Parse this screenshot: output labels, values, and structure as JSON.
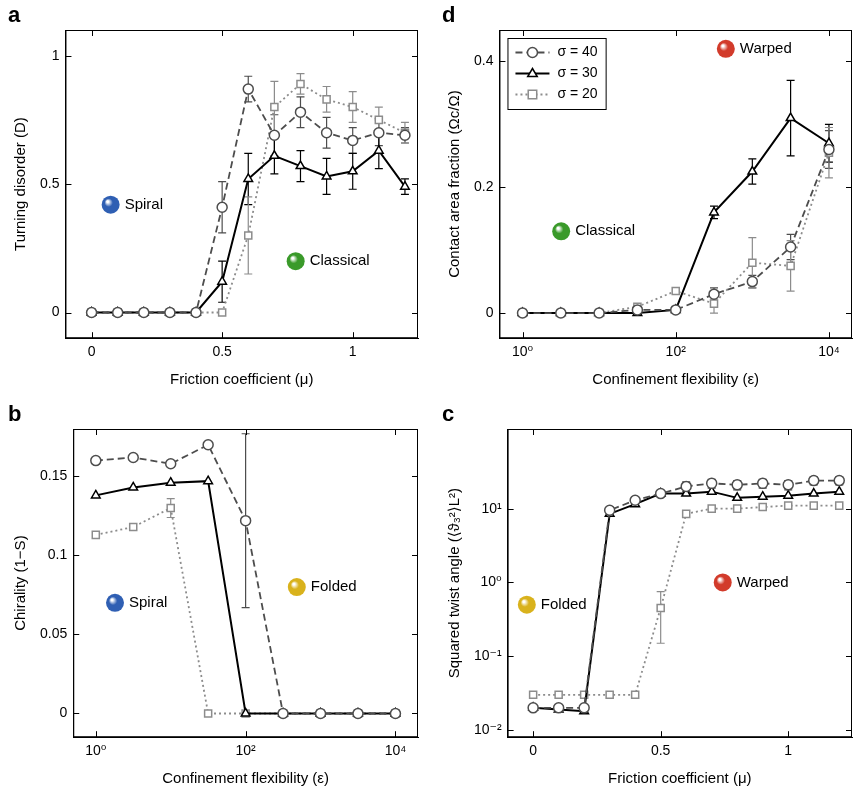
{
  "chart_data": [
    {
      "panel": "a",
      "type": "line",
      "x_label": "Friction coefficient (μ)",
      "y_label": "Turning disorder (D)",
      "x": [
        0,
        0.1,
        0.2,
        0.3,
        0.4,
        0.5,
        0.6,
        0.7,
        0.8,
        0.9,
        1.0,
        1.1,
        1.2
      ],
      "xlim": [
        -0.1,
        1.25
      ],
      "xticks": [
        0,
        0.5,
        1
      ],
      "ylim": [
        -0.1,
        1.1
      ],
      "yticks": [
        0,
        0.5,
        1
      ],
      "grid": false,
      "series": [
        {
          "color": "#4d4d4d",
          "marker": "circle",
          "line_style": "dashed",
          "values": [
            0,
            0,
            0,
            0,
            0,
            0.41,
            0.87,
            0.69,
            0.78,
            0.7,
            0.67,
            0.7,
            0.69
          ],
          "errors": [
            0,
            0,
            0,
            0,
            0,
            0.1,
            0.05,
            0.08,
            0.06,
            0.06,
            0.05,
            0.05,
            0.03
          ]
        },
        {
          "color": "#000000",
          "marker": "triangle",
          "line_style": "solid",
          "values": [
            0,
            0,
            0,
            0,
            0,
            0.12,
            0.52,
            0.61,
            0.57,
            0.53,
            0.55,
            0.63,
            0.49
          ],
          "errors": [
            0,
            0,
            0,
            0,
            0,
            0.08,
            0.1,
            0.07,
            0.06,
            0.07,
            0.07,
            0.07,
            0.03
          ]
        },
        {
          "color": "#8c8c8c",
          "marker": "square",
          "line_style": "dotted",
          "values": [
            0,
            0,
            0,
            0,
            0,
            0,
            0.3,
            0.8,
            0.89,
            0.83,
            0.8,
            0.75,
            0.7
          ],
          "errors": [
            0,
            0,
            0,
            0,
            0,
            0,
            0.15,
            0.1,
            0.04,
            0.05,
            0.06,
            0.05,
            0.04
          ]
        }
      ],
      "annotations": [
        {
          "text": "Spiral",
          "x": 0.2,
          "y": 0.42,
          "color": "#2f5fb3"
        },
        {
          "text": "Classical",
          "x": 0.95,
          "y": 0.2,
          "color": "#3a9a2a"
        }
      ]
    },
    {
      "panel": "d",
      "type": "line",
      "x_label": "Confinement flexibility (ε)",
      "y_label": "Contact area fraction (Ωc/Ω)",
      "log": "x",
      "x": [
        1,
        3.16,
        10,
        31.6,
        100,
        316,
        1000,
        3160,
        10000
      ],
      "xlim": [
        0.5,
        20000
      ],
      "xticks": [
        {
          "value": 1,
          "label": "10⁰"
        },
        {
          "value": 100,
          "label": "10²"
        },
        {
          "value": 10000,
          "label": "10⁴"
        }
      ],
      "ylim": [
        -0.04,
        0.45
      ],
      "yticks": [
        0,
        0.2,
        0.4
      ],
      "grid": false,
      "legend": "top-left",
      "series": [
        {
          "name": "σ = 40",
          "color": "#4d4d4d",
          "marker": "circle",
          "line_style": "dashed",
          "values": [
            0,
            0,
            0,
            0.005,
            0.005,
            0.03,
            0.05,
            0.105,
            0.26
          ],
          "errors": [
            0,
            0,
            0,
            0,
            0,
            0.01,
            0.01,
            0.02,
            0.03
          ]
        },
        {
          "name": "σ = 30",
          "color": "#000000",
          "marker": "triangle",
          "line_style": "solid",
          "values": [
            0,
            0,
            0,
            0,
            0.005,
            0.16,
            0.225,
            0.31,
            0.27
          ],
          "errors": [
            0,
            0,
            0,
            0,
            0.005,
            0.01,
            0.02,
            0.06,
            0.03
          ]
        },
        {
          "name": "σ = 20",
          "color": "#8c8c8c",
          "marker": "square",
          "line_style": "dotted",
          "values": [
            0,
            0,
            0,
            0.01,
            0.035,
            0.015,
            0.08,
            0.075,
            0.255
          ],
          "errors": [
            0,
            0,
            0,
            0,
            0,
            0.015,
            0.04,
            0.04,
            0.04
          ]
        }
      ],
      "annotations": [
        {
          "text": "Classical",
          "x": 12,
          "y": 0.13,
          "color": "#3a9a2a"
        },
        {
          "text": "Warped",
          "x": 1500,
          "y": 0.42,
          "color": "#d23b2b"
        }
      ]
    },
    {
      "panel": "b",
      "type": "line",
      "x_label": "Confinement flexibility (ε)",
      "y_label": "Chirality (1−S)",
      "log": "x",
      "x": [
        1,
        3.16,
        10,
        31.6,
        100,
        316,
        1000,
        3160,
        10000
      ],
      "xlim": [
        0.5,
        20000
      ],
      "xticks": [
        {
          "value": 1,
          "label": "10⁰"
        },
        {
          "value": 100,
          "label": "10²"
        },
        {
          "value": 10000,
          "label": "10⁴"
        }
      ],
      "ylim": [
        -0.015,
        0.18
      ],
      "yticks": [
        0,
        0.05,
        0.1,
        0.15
      ],
      "grid": false,
      "series": [
        {
          "color": "#4d4d4d",
          "marker": "circle",
          "line_style": "dashed",
          "values": [
            0.16,
            0.162,
            0.158,
            0.17,
            0.122,
            0,
            0,
            0,
            0
          ],
          "errors": [
            0,
            0,
            0,
            0,
            0.055,
            0,
            0,
            0,
            0
          ]
        },
        {
          "color": "#000000",
          "marker": "triangle",
          "line_style": "solid",
          "values": [
            0.138,
            0.143,
            0.146,
            0.147,
            0,
            0,
            0,
            0,
            0
          ],
          "errors": [
            0,
            0,
            0,
            0,
            0,
            0,
            0,
            0,
            0
          ]
        },
        {
          "color": "#8c8c8c",
          "marker": "square",
          "line_style": "dotted",
          "values": [
            0.113,
            0.118,
            0.13,
            0,
            0,
            0,
            0,
            0,
            0
          ],
          "errors": [
            0,
            0,
            0.006,
            0,
            0,
            0,
            0,
            0,
            0
          ]
        }
      ],
      "annotations": [
        {
          "text": "Spiral",
          "x": 5,
          "y": 0.07,
          "color": "#2f5fb3"
        },
        {
          "text": "Folded",
          "x": 1500,
          "y": 0.08,
          "color": "#d9b21c"
        }
      ]
    },
    {
      "panel": "c",
      "type": "line",
      "x_label": "Friction coefficient (μ)",
      "y_label": "Squared twist angle (⟨ϑ₃²⟩L²)",
      "log": "y",
      "x": [
        0,
        0.1,
        0.2,
        0.3,
        0.4,
        0.5,
        0.6,
        0.7,
        0.8,
        0.9,
        1.0,
        1.1,
        1.2
      ],
      "xlim": [
        -0.1,
        1.25
      ],
      "xticks": [
        0,
        0.5,
        1
      ],
      "ylim": [
        0.008,
        120
      ],
      "yticks": [
        {
          "value": 0.01,
          "label": "10⁻²"
        },
        {
          "value": 0.1,
          "label": "10⁻¹"
        },
        {
          "value": 1,
          "label": "10⁰"
        },
        {
          "value": 10,
          "label": "10¹"
        }
      ],
      "grid": false,
      "series": [
        {
          "color": "#4d4d4d",
          "marker": "circle",
          "line_style": "dashed",
          "values": [
            0.02,
            0.02,
            0.02,
            9.5,
            13,
            16,
            20,
            22,
            21,
            22,
            21,
            24,
            24
          ],
          "errors": [
            0,
            0,
            0,
            0,
            0,
            0,
            3,
            3,
            3,
            3,
            3,
            3,
            3
          ]
        },
        {
          "color": "#000000",
          "marker": "triangle",
          "line_style": "solid",
          "values": [
            0.02,
            0.019,
            0.018,
            8.5,
            11.5,
            16,
            16,
            17,
            14,
            14.5,
            15,
            16,
            17
          ],
          "errors": [
            0,
            0,
            0,
            0,
            0,
            0,
            0,
            0,
            0,
            0,
            0,
            0,
            0
          ]
        },
        {
          "color": "#8c8c8c",
          "marker": "square",
          "line_style": "dotted",
          "values": [
            0.03,
            0.03,
            0.03,
            0.03,
            0.03,
            0.45,
            8.5,
            10,
            10,
            10.5,
            11,
            11,
            11
          ],
          "errors": [
            0,
            0,
            0,
            0,
            0,
            0.3,
            0,
            0,
            0,
            0,
            0,
            0,
            0
          ]
        }
      ],
      "annotations": [
        {
          "text": "Folded",
          "x": 0.12,
          "y": 0.5,
          "color": "#d9b21c"
        },
        {
          "text": "Warped",
          "x": 0.9,
          "y": 1.0,
          "color": "#d23b2b"
        }
      ]
    }
  ]
}
